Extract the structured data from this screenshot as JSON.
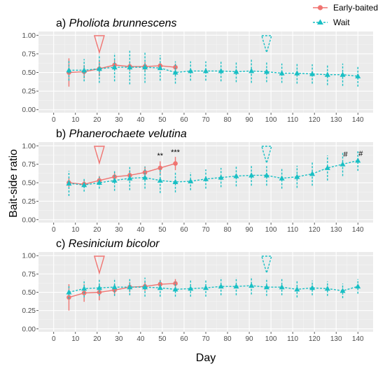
{
  "legend": {
    "position": "top-right",
    "items": [
      {
        "label": "Early-baited",
        "color": "#f07471",
        "marker": "circle",
        "line": "solid"
      },
      {
        "label": "Wait",
        "color": "#19bfc4",
        "marker": "triangle",
        "line": "dashed"
      }
    ]
  },
  "axis_labels": {
    "y": "Bait-side ratio",
    "x": "Day"
  },
  "chart_data": [
    {
      "type": "line",
      "prefix": "a)",
      "title": "Pholiota brunnescens",
      "xlabel": "Day",
      "ylabel": "Bait-side ratio",
      "xlim": [
        -7,
        147
      ],
      "ylim": [
        -0.04,
        1.05
      ],
      "xticks": [
        "0",
        "10",
        "20",
        "30",
        "40",
        "50",
        "60",
        "70",
        "80",
        "90",
        "100",
        "110",
        "120",
        "130",
        "140"
      ],
      "yticks": [
        "0.00",
        "0.25",
        "0.50",
        "0.75",
        "1.00"
      ],
      "grid": true,
      "markers_day": [
        21,
        98
      ],
      "series": [
        {
          "name": "Early-baited",
          "x": [
            7,
            14,
            21,
            28,
            35,
            42,
            49,
            56
          ],
          "values": [
            0.5,
            0.51,
            0.55,
            0.6,
            0.58,
            0.58,
            0.59,
            0.57
          ],
          "err": [
            0.19,
            0.09,
            0.1,
            0.07,
            0.06,
            0.06,
            0.05,
            0.05
          ]
        },
        {
          "name": "Wait",
          "x": [
            7,
            14,
            21,
            28,
            35,
            42,
            49,
            56,
            63,
            70,
            77,
            84,
            91,
            98,
            105,
            112,
            119,
            126,
            133,
            140
          ],
          "values": [
            0.53,
            0.53,
            0.55,
            0.57,
            0.57,
            0.57,
            0.56,
            0.5,
            0.52,
            0.52,
            0.52,
            0.51,
            0.52,
            0.51,
            0.49,
            0.49,
            0.48,
            0.47,
            0.47,
            0.45
          ],
          "err": [
            0.14,
            0.15,
            0.19,
            0.19,
            0.23,
            0.21,
            0.17,
            0.15,
            0.13,
            0.13,
            0.14,
            0.14,
            0.16,
            0.14,
            0.13,
            0.14,
            0.13,
            0.14,
            0.15,
            0.14
          ]
        }
      ],
      "annotations": []
    },
    {
      "type": "line",
      "prefix": "b)",
      "title": "Phanerochaete velutina",
      "xlabel": "Day",
      "ylabel": "Bait-side ratio",
      "xlim": [
        -7,
        147
      ],
      "ylim": [
        -0.04,
        1.05
      ],
      "xticks": [
        "0",
        "10",
        "20",
        "30",
        "40",
        "50",
        "60",
        "70",
        "80",
        "90",
        "100",
        "110",
        "120",
        "130",
        "140"
      ],
      "yticks": [
        "0.00",
        "0.25",
        "0.50",
        "0.75",
        "1.00"
      ],
      "grid": true,
      "markers_day": [
        21,
        98
      ],
      "series": [
        {
          "name": "Early-baited",
          "x": [
            7,
            14,
            21,
            28,
            35,
            42,
            49,
            56
          ],
          "values": [
            0.5,
            0.48,
            0.53,
            0.58,
            0.6,
            0.64,
            0.7,
            0.76
          ],
          "err": [
            0.06,
            0.05,
            0.06,
            0.07,
            0.07,
            0.08,
            0.09,
            0.09
          ]
        },
        {
          "name": "Wait",
          "x": [
            7,
            14,
            21,
            28,
            35,
            42,
            49,
            56,
            63,
            70,
            77,
            84,
            91,
            98,
            105,
            112,
            119,
            126,
            133,
            140
          ],
          "values": [
            0.49,
            0.47,
            0.5,
            0.53,
            0.56,
            0.57,
            0.53,
            0.51,
            0.52,
            0.55,
            0.57,
            0.59,
            0.6,
            0.6,
            0.56,
            0.58,
            0.62,
            0.7,
            0.75,
            0.8
          ],
          "err": [
            0.17,
            0.09,
            0.08,
            0.14,
            0.16,
            0.15,
            0.17,
            0.14,
            0.12,
            0.13,
            0.13,
            0.14,
            0.14,
            0.14,
            0.14,
            0.15,
            0.16,
            0.17,
            0.16,
            0.14
          ]
        }
      ],
      "annotations": [
        {
          "text": "**",
          "x": 49,
          "y": 0.83
        },
        {
          "text": "***",
          "x": 56,
          "y": 0.88
        },
        {
          "text": "#",
          "x": 133,
          "y": 0.85
        },
        {
          "text": "#",
          "x": 140,
          "y": 0.86
        }
      ]
    },
    {
      "type": "line",
      "prefix": "c)",
      "title": "Resinicium bicolor",
      "xlabel": "Day",
      "ylabel": "Bait-side ratio",
      "xlim": [
        -7,
        147
      ],
      "ylim": [
        -0.04,
        1.05
      ],
      "xticks": [
        "0",
        "10",
        "20",
        "30",
        "40",
        "50",
        "60",
        "70",
        "80",
        "90",
        "100",
        "110",
        "120",
        "130",
        "140"
      ],
      "yticks": [
        "0.00",
        "0.25",
        "0.50",
        "0.75",
        "1.00"
      ],
      "grid": true,
      "markers_day": [
        21,
        98
      ],
      "series": [
        {
          "name": "Early-baited",
          "x": [
            7,
            14,
            21,
            28,
            35,
            42,
            49,
            56
          ],
          "values": [
            0.43,
            0.49,
            0.5,
            0.53,
            0.57,
            0.58,
            0.61,
            0.62
          ],
          "err": [
            0.18,
            0.12,
            0.11,
            0.08,
            0.07,
            0.06,
            0.06,
            0.06
          ]
        },
        {
          "name": "Wait",
          "x": [
            7,
            14,
            21,
            28,
            35,
            42,
            49,
            56,
            63,
            70,
            77,
            84,
            91,
            98,
            105,
            112,
            119,
            126,
            133,
            140
          ],
          "values": [
            0.5,
            0.55,
            0.56,
            0.57,
            0.57,
            0.57,
            0.56,
            0.54,
            0.55,
            0.56,
            0.58,
            0.58,
            0.59,
            0.57,
            0.57,
            0.54,
            0.56,
            0.55,
            0.52,
            0.58
          ],
          "err": [
            0.09,
            0.12,
            0.11,
            0.12,
            0.11,
            0.13,
            0.12,
            0.1,
            0.11,
            0.12,
            0.12,
            0.12,
            0.12,
            0.12,
            0.11,
            0.11,
            0.1,
            0.1,
            0.1,
            0.1
          ]
        }
      ],
      "annotations": []
    }
  ]
}
